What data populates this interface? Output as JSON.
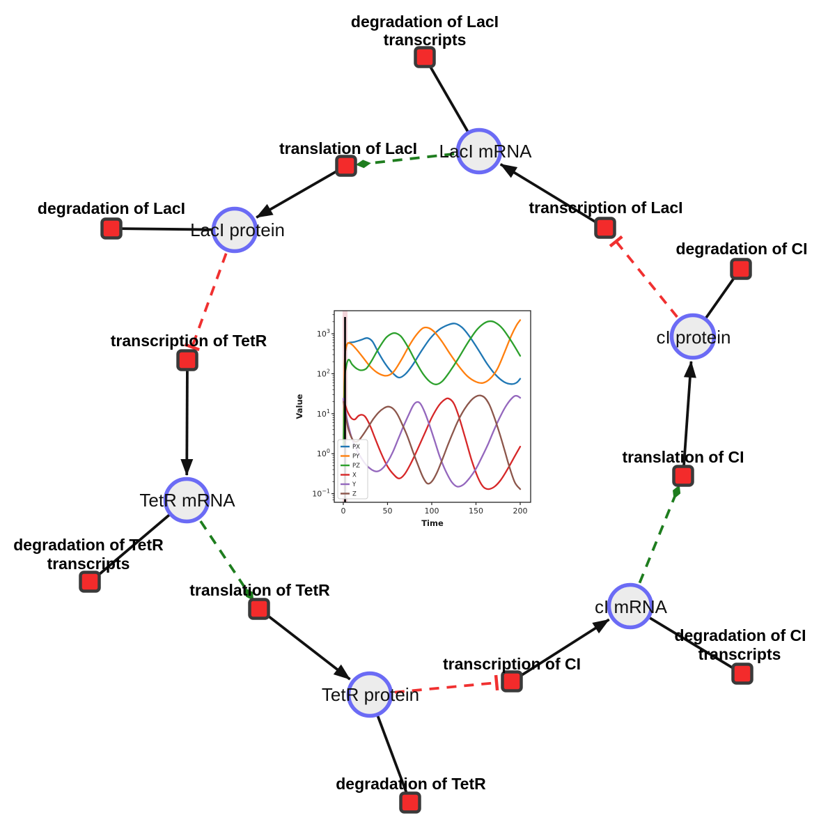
{
  "figure": {
    "background": "#ffffff"
  },
  "diagram": {
    "species": [
      {
        "id": "lacl-mrna",
        "label": "LacI mRNA"
      },
      {
        "id": "lacl-protein",
        "label": "LacI protein"
      },
      {
        "id": "tetr-mrna",
        "label": "TetR mRNA"
      },
      {
        "id": "tetr-protein",
        "label": "TetR protein"
      },
      {
        "id": "ci-mrna",
        "label": "cI mRNA"
      },
      {
        "id": "ci-protein",
        "label": "cI protein"
      }
    ],
    "reactions": [
      {
        "id": "degradation-of-lacl-transcripts",
        "lines": [
          "degradation of LacI",
          "transcripts"
        ]
      },
      {
        "id": "translation-of-lacl",
        "lines": [
          "translation of LacI"
        ]
      },
      {
        "id": "transcription-of-lacl",
        "lines": [
          "transcription of LacI"
        ]
      },
      {
        "id": "degradation-of-lacl",
        "lines": [
          "degradation of LacI"
        ]
      },
      {
        "id": "degradation-of-ci",
        "lines": [
          "degradation of CI"
        ]
      },
      {
        "id": "transcription-of-tetr",
        "lines": [
          "transcription of TetR"
        ]
      },
      {
        "id": "degradation-of-tetr-transcripts",
        "lines": [
          "degradation of TetR",
          "transcripts"
        ]
      },
      {
        "id": "translation-of-tetr",
        "lines": [
          "translation of TetR"
        ]
      },
      {
        "id": "degradation-of-tetr",
        "lines": [
          "degradation of TetR"
        ]
      },
      {
        "id": "transcription-of-ci",
        "lines": [
          "transcription of CI"
        ]
      },
      {
        "id": "degradation-of-ci-transcripts",
        "lines": [
          "degradation of CI",
          "transcripts"
        ]
      },
      {
        "id": "translation-of-ci",
        "lines": [
          "translation of CI"
        ]
      }
    ],
    "colors": {
      "node_fill": "#ececec",
      "node_stroke": "#6b6bf5",
      "reaction_fill": "#f32b2b",
      "reaction_stroke": "#3a3a3a",
      "edge_main": "#111111",
      "edge_catalysis": "#1e7d1e",
      "edge_inhibition": "#f03030",
      "label_color": "#000000"
    }
  },
  "chart_data": {
    "type": "line",
    "title": "",
    "xlabel": "Time",
    "ylabel": "Value",
    "x_ticks": [
      0,
      50,
      100,
      150,
      200
    ],
    "xlim": [
      -10.2,
      211.8
    ],
    "y_scale": "log",
    "y_tick_exponents": [
      -1,
      0,
      1,
      2,
      3
    ],
    "ylim_log": [
      -1.216,
      3.576
    ],
    "grid": false,
    "legend_position": "lower left",
    "event_line_x": 2,
    "event_band_color": "#e8aab4",
    "series": [
      {
        "name": "PX",
        "color": "#1f77b4",
        "points": [
          [
            0.3,
            1.5
          ],
          [
            1.5,
            150
          ],
          [
            3,
            450
          ],
          [
            6,
            590
          ],
          [
            12,
            620
          ],
          [
            20,
            700
          ],
          [
            27,
            780
          ],
          [
            33,
            640
          ],
          [
            40,
            330
          ],
          [
            48,
            170
          ],
          [
            56,
            103
          ],
          [
            63,
            80
          ],
          [
            70,
            97
          ],
          [
            78,
            160
          ],
          [
            88,
            360
          ],
          [
            98,
            750
          ],
          [
            108,
            1250
          ],
          [
            118,
            1650
          ],
          [
            126,
            1800
          ],
          [
            134,
            1450
          ],
          [
            142,
            900
          ],
          [
            152,
            420
          ],
          [
            162,
            185
          ],
          [
            172,
            95
          ],
          [
            182,
            62
          ],
          [
            190,
            55
          ],
          [
            196,
            60
          ],
          [
            200,
            75
          ]
        ]
      },
      {
        "name": "PY",
        "color": "#ff7f0e",
        "points": [
          [
            0.3,
            1.5
          ],
          [
            1.5,
            180
          ],
          [
            4,
            520
          ],
          [
            8,
            570
          ],
          [
            14,
            430
          ],
          [
            22,
            260
          ],
          [
            30,
            155
          ],
          [
            38,
            108
          ],
          [
            46,
            90
          ],
          [
            52,
            93
          ],
          [
            58,
            120
          ],
          [
            66,
            230
          ],
          [
            74,
            480
          ],
          [
            82,
            900
          ],
          [
            90,
            1380
          ],
          [
            97,
            1380
          ],
          [
            104,
            1050
          ],
          [
            112,
            620
          ],
          [
            120,
            330
          ],
          [
            130,
            160
          ],
          [
            140,
            88
          ],
          [
            150,
            63
          ],
          [
            158,
            59
          ],
          [
            166,
            75
          ],
          [
            174,
            130
          ],
          [
            182,
            330
          ],
          [
            190,
            900
          ],
          [
            196,
            1650
          ],
          [
            200,
            2200
          ]
        ]
      },
      {
        "name": "PZ",
        "color": "#2ca02c",
        "points": [
          [
            0.3,
            1.5
          ],
          [
            1.5,
            60
          ],
          [
            3,
            140
          ],
          [
            6,
            225
          ],
          [
            10,
            170
          ],
          [
            15,
            135
          ],
          [
            20,
            122
          ],
          [
            26,
            135
          ],
          [
            32,
            210
          ],
          [
            40,
            430
          ],
          [
            48,
            780
          ],
          [
            55,
            1010
          ],
          [
            60,
            1020
          ],
          [
            66,
            820
          ],
          [
            74,
            430
          ],
          [
            82,
            200
          ],
          [
            90,
            100
          ],
          [
            98,
            63
          ],
          [
            105,
            54
          ],
          [
            112,
            65
          ],
          [
            120,
            110
          ],
          [
            130,
            240
          ],
          [
            140,
            560
          ],
          [
            150,
            1180
          ],
          [
            158,
            1750
          ],
          [
            165,
            2050
          ],
          [
            172,
            1900
          ],
          [
            180,
            1350
          ],
          [
            190,
            650
          ],
          [
            200,
            280
          ]
        ]
      },
      {
        "name": "X",
        "color": "#d62728",
        "points": [
          [
            0.3,
            22
          ],
          [
            2,
            17
          ],
          [
            5,
            11
          ],
          [
            9,
            7.8
          ],
          [
            13,
            7.2
          ],
          [
            17,
            8.8
          ],
          [
            21,
            9.4
          ],
          [
            25,
            8.3
          ],
          [
            30,
            5.2
          ],
          [
            36,
            2.4
          ],
          [
            43,
            1.0
          ],
          [
            50,
            0.48
          ],
          [
            57,
            0.3
          ],
          [
            63,
            0.24
          ],
          [
            69,
            0.3
          ],
          [
            76,
            0.55
          ],
          [
            84,
            1.3
          ],
          [
            92,
            3.2
          ],
          [
            100,
            8
          ],
          [
            108,
            16
          ],
          [
            114,
            22
          ],
          [
            119,
            24
          ],
          [
            125,
            18
          ],
          [
            131,
            8
          ],
          [
            138,
            2.4
          ],
          [
            145,
            0.7
          ],
          [
            152,
            0.26
          ],
          [
            158,
            0.15
          ],
          [
            164,
            0.13
          ],
          [
            171,
            0.15
          ],
          [
            178,
            0.22
          ],
          [
            186,
            0.42
          ],
          [
            193,
            0.8
          ],
          [
            200,
            1.5
          ]
        ]
      },
      {
        "name": "Y",
        "color": "#9467bd",
        "points": [
          [
            0.3,
            24
          ],
          [
            2,
            14
          ],
          [
            5,
            6
          ],
          [
            9,
            2.7
          ],
          [
            14,
            1.4
          ],
          [
            20,
            0.8
          ],
          [
            26,
            0.52
          ],
          [
            32,
            0.4
          ],
          [
            38,
            0.36
          ],
          [
            44,
            0.42
          ],
          [
            50,
            0.62
          ],
          [
            56,
            1.1
          ],
          [
            62,
            2.3
          ],
          [
            68,
            4.8
          ],
          [
            74,
            9.5
          ],
          [
            79,
            16
          ],
          [
            83,
            19.5
          ],
          [
            87,
            18
          ],
          [
            92,
            11
          ],
          [
            97,
            5.5
          ],
          [
            103,
            2.2
          ],
          [
            109,
            0.85
          ],
          [
            116,
            0.36
          ],
          [
            123,
            0.19
          ],
          [
            129,
            0.15
          ],
          [
            136,
            0.17
          ],
          [
            143,
            0.25
          ],
          [
            150,
            0.42
          ],
          [
            157,
            0.85
          ],
          [
            164,
            1.8
          ],
          [
            171,
            4.2
          ],
          [
            178,
            9
          ],
          [
            185,
            17
          ],
          [
            192,
            26
          ],
          [
            196,
            28
          ],
          [
            200,
            25
          ]
        ]
      },
      {
        "name": "Z",
        "color": "#8c564b",
        "points": [
          [
            0.3,
            20
          ],
          [
            2,
            11
          ],
          [
            5,
            4.8
          ],
          [
            9,
            2.6
          ],
          [
            13,
            2.0
          ],
          [
            17,
            2.1
          ],
          [
            22,
            2.9
          ],
          [
            28,
            4.6
          ],
          [
            34,
            7.4
          ],
          [
            40,
            10.8
          ],
          [
            46,
            13.8
          ],
          [
            51,
            15
          ],
          [
            56,
            13.5
          ],
          [
            61,
            9.8
          ],
          [
            66,
            5.8
          ],
          [
            72,
            2.9
          ],
          [
            78,
            1.25
          ],
          [
            84,
            0.55
          ],
          [
            90,
            0.26
          ],
          [
            95,
            0.18
          ],
          [
            100,
            0.2
          ],
          [
            106,
            0.34
          ],
          [
            112,
            0.72
          ],
          [
            118,
            1.6
          ],
          [
            124,
            3.4
          ],
          [
            130,
            6.8
          ],
          [
            137,
            13
          ],
          [
            144,
            21
          ],
          [
            150,
            27
          ],
          [
            155,
            28.5
          ],
          [
            160,
            25
          ],
          [
            165,
            17
          ],
          [
            170,
            9
          ],
          [
            176,
            3.6
          ],
          [
            182,
            1.3
          ],
          [
            188,
            0.45
          ],
          [
            194,
            0.19
          ],
          [
            200,
            0.13
          ]
        ]
      }
    ]
  }
}
